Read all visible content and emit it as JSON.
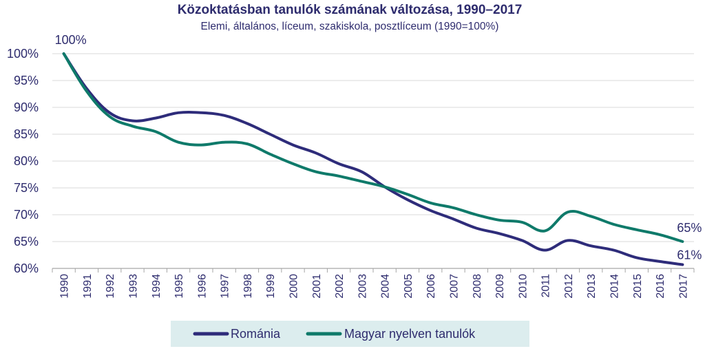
{
  "chart_data": {
    "type": "line",
    "title": "Közoktatásban tanulók számának változása, 1990–2017",
    "subtitle": "Elemi, általános, líceum, szakiskola, posztlíceum (1990=100%)",
    "x": [
      "1990",
      "1991",
      "1992",
      "1993",
      "1994",
      "1995",
      "1996",
      "1997",
      "1998",
      "1999",
      "2000",
      "2001",
      "2002",
      "2003",
      "2004",
      "2005",
      "2006",
      "2007",
      "2008",
      "2009",
      "2010",
      "2011",
      "2012",
      "2013",
      "2014",
      "2015",
      "2016",
      "2017"
    ],
    "ylim": [
      60,
      100
    ],
    "yticks": [
      60,
      65,
      70,
      75,
      80,
      85,
      90,
      95,
      100
    ],
    "ytick_labels": [
      "60%",
      "65%",
      "70%",
      "75%",
      "80%",
      "85%",
      "90%",
      "95%",
      "100%"
    ],
    "grid": true,
    "legend_position": "bottom",
    "series": [
      {
        "name": "Románia",
        "color": "#2e2c7a",
        "values": [
          100,
          93.5,
          89.0,
          87.5,
          88.0,
          89.0,
          89.0,
          88.5,
          87.0,
          85.0,
          83.0,
          81.5,
          79.5,
          78.0,
          75.2,
          72.8,
          70.8,
          69.2,
          67.5,
          66.5,
          65.2,
          63.4,
          65.2,
          64.2,
          63.4,
          62.0,
          61.3,
          60.7
        ]
      },
      {
        "name": "Magyar nyelven tanulók",
        "color": "#0f7a6a",
        "values": [
          100,
          93.0,
          88.3,
          86.5,
          85.5,
          83.5,
          83.0,
          83.5,
          83.2,
          81.3,
          79.5,
          78.0,
          77.2,
          76.2,
          75.2,
          73.8,
          72.2,
          71.3,
          70.0,
          69.0,
          68.6,
          67.0,
          70.5,
          69.7,
          68.2,
          67.2,
          66.3,
          65.0
        ]
      }
    ],
    "annotations": [
      {
        "x": "1990",
        "text": "100%",
        "series": 1
      },
      {
        "x": "2017",
        "text": "65%",
        "series": 1
      },
      {
        "x": "2017",
        "text": "61%",
        "series": 0
      }
    ]
  },
  "colors": {
    "text": "#2e2c6e",
    "grid": "#d9d9d9",
    "axis": "#a6a6a6",
    "legend_background": "#dcedee"
  }
}
